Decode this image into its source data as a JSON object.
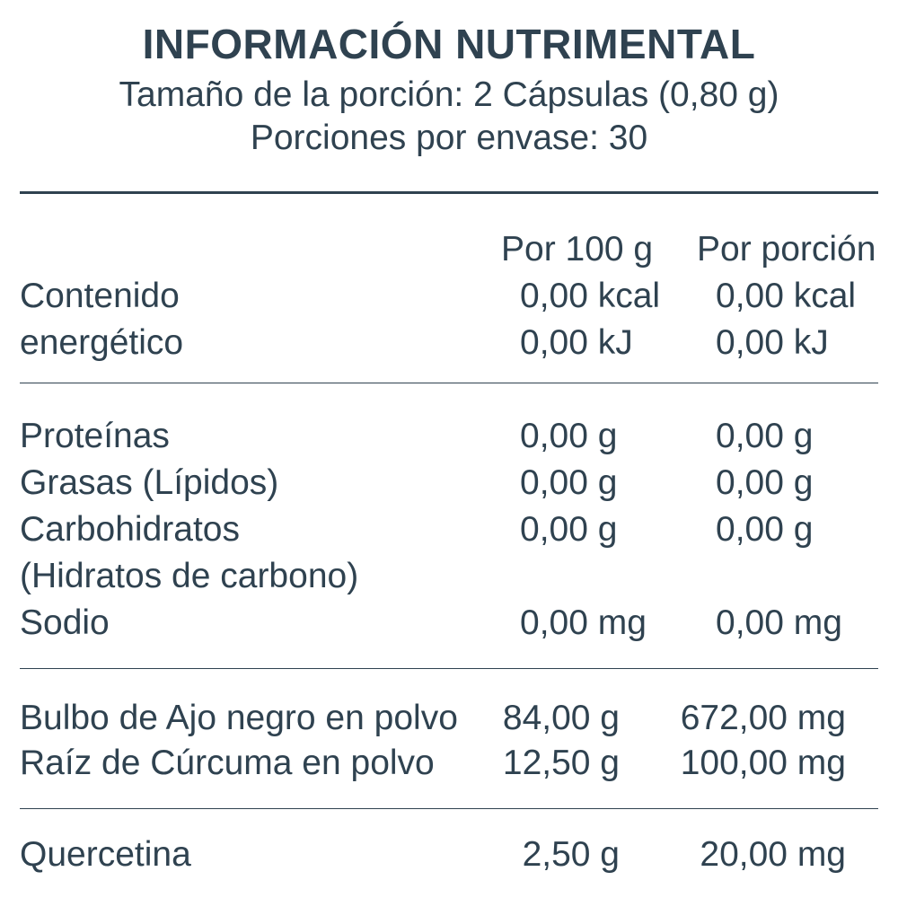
{
  "header": {
    "title": "INFORMACIÓN NUTRIMENTAL",
    "serving_size": "Tamaño de la porción: 2 Cápsulas (0,80 g)",
    "servings_per_container": "Porciones por envase: 30"
  },
  "columns": {
    "per_100g": "Por 100 g",
    "per_serving": "Por porción"
  },
  "energy": {
    "label_line1": "Contenido",
    "label_line2": "energético",
    "kcal_100g": "0,00 kcal",
    "kcal_serving": "0,00 kcal",
    "kj_100g": "0,00 kJ",
    "kj_serving": "0,00 kJ"
  },
  "nutrients": [
    {
      "label": "Proteínas",
      "per_100g": "0,00 g",
      "per_serving": "0,00 g"
    },
    {
      "label": "Grasas (Lípidos)",
      "per_100g": "0,00 g",
      "per_serving": "0,00 g"
    },
    {
      "label": "Carbohidratos",
      "label_line2": "(Hidratos de carbono)",
      "per_100g": "0,00 g",
      "per_serving": "0,00 g"
    },
    {
      "label": "Sodio",
      "per_100g": "0,00 mg",
      "per_serving": "0,00 mg"
    }
  ],
  "ingredients": [
    {
      "label": "Bulbo de Ajo negro en polvo",
      "per_100g": "84,00 g",
      "per_serving": "672,00 mg"
    },
    {
      "label": "Raíz de Cúrcuma en polvo",
      "per_100g": "12,50 g",
      "per_serving": "100,00 mg"
    }
  ],
  "extra": [
    {
      "label": "Quercetina",
      "per_100g": "2,50 g",
      "per_serving": "20,00 mg"
    }
  ],
  "colors": {
    "text": "#2f4250",
    "background": "#ffffff"
  }
}
